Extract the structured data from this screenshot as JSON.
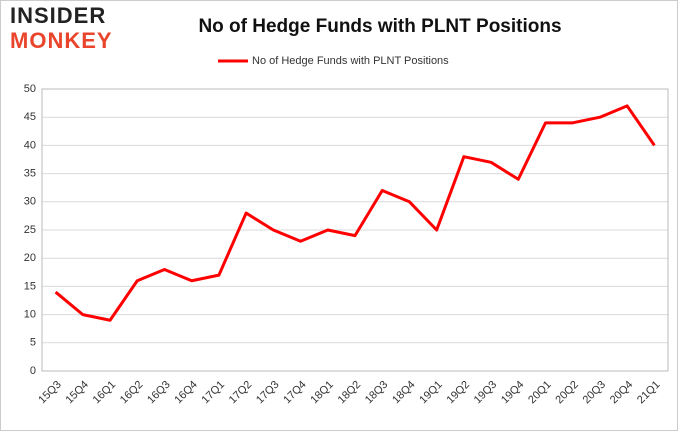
{
  "logo": {
    "line1": "INSIDER",
    "line2": "MONKEY"
  },
  "chart_data": {
    "type": "line",
    "title": "No of Hedge Funds with PLNT Positions",
    "categories": [
      "15Q3",
      "15Q4",
      "16Q1",
      "16Q2",
      "16Q3",
      "16Q4",
      "17Q1",
      "17Q2",
      "17Q3",
      "17Q4",
      "18Q1",
      "18Q2",
      "18Q3",
      "18Q4",
      "19Q1",
      "19Q2",
      "19Q3",
      "19Q4",
      "20Q1",
      "20Q2",
      "20Q3",
      "20Q4",
      "21Q1"
    ],
    "series": [
      {
        "name": "No of Hedge Funds with PLNT Positions",
        "color": "#ff0000",
        "values": [
          14,
          10,
          9,
          16,
          18,
          16,
          17,
          28,
          25,
          23,
          25,
          24,
          32,
          30,
          25,
          38,
          37,
          34,
          44,
          44,
          45,
          47,
          40
        ]
      }
    ],
    "ylim": [
      0,
      50
    ],
    "yticks": [
      0,
      5,
      10,
      15,
      20,
      25,
      30,
      35,
      40,
      45,
      50
    ],
    "grid": true,
    "legend": "top"
  }
}
